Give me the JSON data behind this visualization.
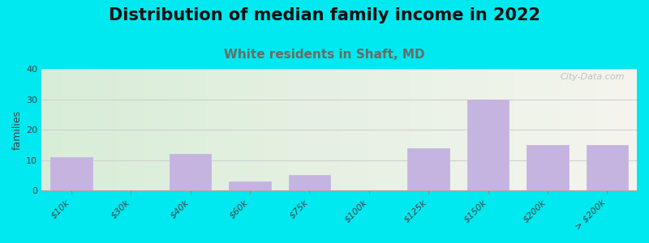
{
  "title": "Distribution of median family income in 2022",
  "subtitle": "White residents in Shaft, MD",
  "ylabel": "families",
  "categories": [
    "$10k",
    "$30k",
    "$40k",
    "$60k",
    "$75k",
    "$100k",
    "$125k",
    "$150k",
    "$200k",
    "> $200k"
  ],
  "values": [
    11,
    0,
    12,
    3,
    5,
    0,
    14,
    30,
    15,
    15
  ],
  "bar_color": "#c5b3e0",
  "bar_edge_color": "#c5b3e0",
  "background_outer": "#00e8f0",
  "background_plot_grad_left": "#d8edd8",
  "background_plot_grad_right": "#f5f5ee",
  "grid_color": "#d0d0d0",
  "title_fontsize": 15,
  "title_color": "#111111",
  "subtitle_fontsize": 11,
  "subtitle_color": "#6a6a6a",
  "ylabel_fontsize": 9,
  "tick_fontsize": 8,
  "ylim": [
    0,
    40
  ],
  "yticks": [
    0,
    10,
    20,
    30,
    40
  ],
  "watermark": "City-Data.com"
}
